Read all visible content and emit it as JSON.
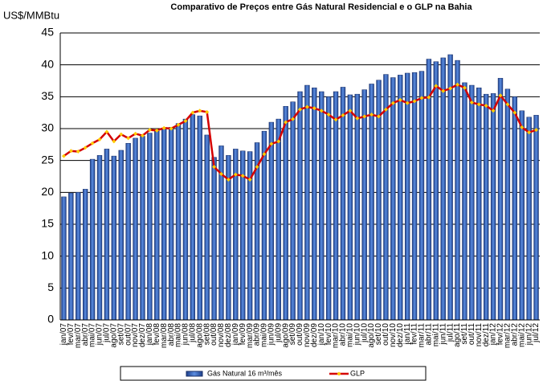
{
  "chart_data": {
    "type": "bar-line",
    "title": "Comparativo de Preços entre Gás Natural Residencial e o GLP na Bahia",
    "y_label": "US$/MMBtu",
    "categories": [
      "jan/07",
      "fev/07",
      "mar/07",
      "abr/07",
      "mai/07",
      "jun/07",
      "jul/07",
      "ago/07",
      "set/07",
      "out/07",
      "nov/07",
      "dez/07",
      "jan/08",
      "fev/08",
      "mar/08",
      "abr/08",
      "mai/08",
      "jun/08",
      "jul/08",
      "ago/08",
      "set/08",
      "out/08",
      "nov/08",
      "dez/08",
      "jan/09",
      "fev/09",
      "mar/09",
      "abr/09",
      "mai/09",
      "jun/09",
      "jul/09",
      "ago/09",
      "set/09",
      "out/09",
      "nov/09",
      "dez/09",
      "jan/10",
      "fev/10",
      "mar/10",
      "abr/10",
      "mai/10",
      "jun/10",
      "jul/10",
      "ago/10",
      "set/10",
      "out/10",
      "nov/10",
      "dez/10",
      "jan/11",
      "fev/11",
      "mar/11",
      "abr/11",
      "mai/11",
      "jun/11",
      "jul/11",
      "ago/11",
      "set/11",
      "out/11",
      "nov/11",
      "dez/11",
      "jan/12",
      "fev/12",
      "mar/12",
      "abr/12",
      "mai/12",
      "jun/12",
      "jul/12"
    ],
    "series": [
      {
        "name": "Gás Natural 16 m³/mês",
        "type": "bar",
        "color": "#2f64c0",
        "values": [
          19.3,
          19.9,
          20.0,
          20.5,
          25.2,
          25.8,
          26.8,
          25.7,
          26.6,
          27.7,
          28.5,
          28.8,
          29.3,
          29.6,
          30.0,
          30.2,
          30.8,
          31.5,
          32.2,
          32.0,
          29.0,
          25.5,
          27.3,
          25.8,
          26.8,
          26.5,
          26.4,
          27.8,
          29.6,
          31.0,
          31.5,
          33.5,
          34.2,
          35.8,
          36.8,
          36.4,
          35.8,
          35.0,
          35.8,
          36.5,
          35.3,
          35.4,
          36.1,
          37.0,
          37.6,
          38.5,
          38.0,
          38.4,
          38.7,
          38.8,
          39.0,
          40.9,
          40.5,
          41.1,
          41.6,
          40.7,
          37.2,
          36.8,
          36.4,
          35.4,
          35.5,
          37.9,
          36.2,
          35.0,
          32.8,
          31.8,
          32.1
        ]
      },
      {
        "name": "GLP",
        "type": "line",
        "color": "#d40000",
        "marker_color": "#ffcc00",
        "values": [
          25.7,
          26.5,
          26.4,
          27.0,
          27.7,
          28.3,
          29.5,
          28.0,
          29.1,
          28.5,
          29.2,
          28.9,
          29.8,
          29.7,
          30.1,
          30.0,
          30.6,
          31.2,
          32.5,
          32.8,
          32.6,
          24.0,
          22.9,
          22.0,
          22.8,
          22.6,
          22.0,
          24.0,
          26.0,
          27.6,
          28.0,
          31.0,
          31.5,
          33.0,
          33.4,
          33.2,
          32.8,
          32.2,
          31.4,
          32.1,
          32.8,
          31.6,
          31.9,
          32.2,
          31.9,
          33.0,
          34.0,
          34.5,
          34.0,
          34.3,
          34.8,
          34.9,
          36.7,
          35.9,
          36.3,
          36.9,
          36.4,
          34.1,
          33.8,
          33.6,
          32.8,
          35.2,
          33.8,
          32.5,
          30.2,
          29.4,
          29.8
        ]
      }
    ],
    "ylim": [
      0,
      45
    ],
    "yticks": [
      0,
      5,
      10,
      15,
      20,
      25,
      30,
      35,
      40,
      45
    ],
    "grid": true
  }
}
